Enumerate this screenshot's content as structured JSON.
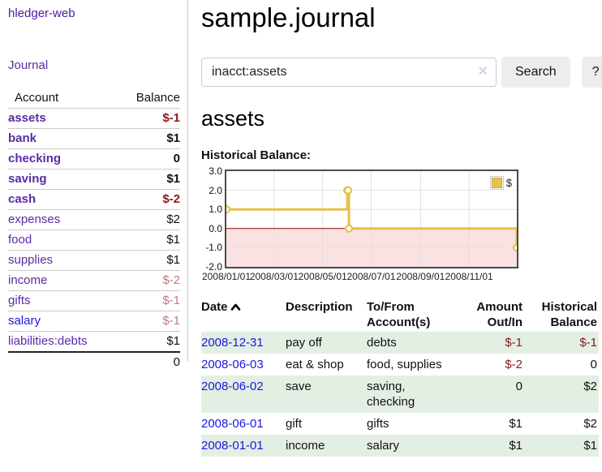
{
  "colors": {
    "link_purple": "#5b2aa5",
    "link_blue": "#1a16e0",
    "negative_strong": "#8b1a1a",
    "negative_muted": "#c07a7c",
    "row_shaded_green": "#e3efe3",
    "chart_line_gold": "#e7c04a",
    "chart_negative_fill": "#fbe2e2",
    "chart_zero_line": "#8b0000",
    "chart_grid": "#e0e0e0",
    "chart_border": "#4a4a4a"
  },
  "brand": {
    "label": "hledger-web"
  },
  "nav": {
    "journal": "Journal"
  },
  "sidebar": {
    "col_account": "Account",
    "col_balance": "Balance",
    "accounts": [
      {
        "name": "assets",
        "indent": 0,
        "bold": true,
        "link": "purple",
        "balance": "$-1",
        "balance_style": "neg-strong"
      },
      {
        "name": "bank",
        "indent": 1,
        "bold": true,
        "link": "purple",
        "balance": "$1",
        "balance_style": "normal"
      },
      {
        "name": "checking",
        "indent": 2,
        "bold": true,
        "link": "purple",
        "balance": "0",
        "balance_style": "normal"
      },
      {
        "name": "saving",
        "indent": 2,
        "bold": true,
        "link": "purple",
        "balance": "$1",
        "balance_style": "normal"
      },
      {
        "name": "cash",
        "indent": 1,
        "bold": true,
        "link": "purple",
        "balance": "$-2",
        "balance_style": "neg-strong"
      },
      {
        "name": "expenses",
        "indent": 0,
        "bold": false,
        "link": "purple",
        "balance": "$2",
        "balance_style": "normal"
      },
      {
        "name": "food",
        "indent": 1,
        "bold": false,
        "link": "purple",
        "balance": "$1",
        "balance_style": "normal"
      },
      {
        "name": "supplies",
        "indent": 1,
        "bold": false,
        "link": "purple",
        "balance": "$1",
        "balance_style": "normal"
      },
      {
        "name": "income",
        "indent": 0,
        "bold": false,
        "link": "purple",
        "balance": "$-2",
        "balance_style": "neg-muted"
      },
      {
        "name": "gifts",
        "indent": 1,
        "bold": false,
        "link": "purple",
        "balance": "$-1",
        "balance_style": "neg-muted"
      },
      {
        "name": "salary",
        "indent": 1,
        "bold": false,
        "link": "blue",
        "balance": "$-1",
        "balance_style": "neg-muted"
      },
      {
        "name": "liabilities:debts",
        "indent": 0,
        "bold": false,
        "link": "purple",
        "balance": "$1",
        "balance_style": "normal"
      }
    ],
    "total": "0"
  },
  "main": {
    "title": "sample.journal"
  },
  "search": {
    "value": "inacct:assets",
    "clear": "✕",
    "submit": "Search",
    "help": "?"
  },
  "account_page": {
    "heading": "assets",
    "chart_title": "Historical Balance:"
  },
  "chart_data": {
    "type": "line",
    "step": true,
    "title": "Historical Balance:",
    "legend": [
      "$"
    ],
    "legend_position": "top-right",
    "grid": true,
    "ylim": [
      -2,
      3
    ],
    "y_ticks": [
      "3.0",
      "2.0",
      "1.0",
      "0.0",
      "-1.0",
      "-2.0"
    ],
    "y_tick_values": [
      3,
      2,
      1,
      0,
      -1,
      -2
    ],
    "x_range_days": [
      0,
      365
    ],
    "x_ticks": [
      {
        "label": "2008/01/01",
        "day": 0
      },
      {
        "label": "2008/03/01",
        "day": 60
      },
      {
        "label": "2008/05/01",
        "day": 121
      },
      {
        "label": "2008/07/01",
        "day": 182
      },
      {
        "label": "2008/09/01",
        "day": 244
      },
      {
        "label": "2008/11/01",
        "day": 305
      }
    ],
    "series": [
      {
        "name": "$",
        "color": "#e7c04a",
        "points": [
          {
            "date": "2008-01-01",
            "day": 0,
            "value": 1
          },
          {
            "date": "2008-06-01",
            "day": 152,
            "value": 2
          },
          {
            "date": "2008-06-02",
            "day": 153,
            "value": 2
          },
          {
            "date": "2008-06-03",
            "day": 154,
            "value": 0
          },
          {
            "date": "2008-12-31",
            "day": 365,
            "value": -1
          }
        ]
      }
    ]
  },
  "register": {
    "headers": {
      "date": "Date",
      "description": "Description",
      "tofrom": "To/From Account(s)",
      "amount": "Amount Out/In",
      "balance": "Historical Balance"
    },
    "rows": [
      {
        "date": "2008-12-31",
        "description": "pay off",
        "accounts": "debts",
        "amount": "$-1",
        "amount_neg": true,
        "balance": "$-1",
        "balance_neg": true,
        "shaded": true
      },
      {
        "date": "2008-06-03",
        "description": "eat & shop",
        "accounts": "food, supplies",
        "amount": "$-2",
        "amount_neg": true,
        "balance": "0",
        "balance_neg": false,
        "shaded": false
      },
      {
        "date": "2008-06-02",
        "description": "save",
        "accounts": "saving, checking",
        "amount": "0",
        "amount_neg": false,
        "balance": "$2",
        "balance_neg": false,
        "shaded": true
      },
      {
        "date": "2008-06-01",
        "description": "gift",
        "accounts": "gifts",
        "amount": "$1",
        "amount_neg": false,
        "balance": "$2",
        "balance_neg": false,
        "shaded": false
      },
      {
        "date": "2008-01-01",
        "description": "income",
        "accounts": "salary",
        "amount": "$1",
        "amount_neg": false,
        "balance": "$1",
        "balance_neg": false,
        "shaded": true
      }
    ]
  }
}
